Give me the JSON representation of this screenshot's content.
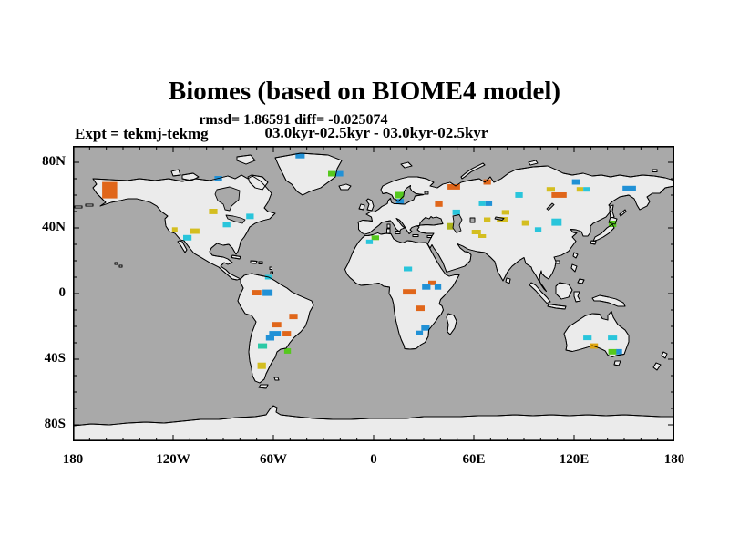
{
  "figure": {
    "title": "Biomes (based on BIOME4 model)",
    "stats_line": "rmsd= 1.86591 diff= -0.025074",
    "period_line": "03.0kyr-02.5kyr - 03.0kyr-02.5kyr",
    "experiment_label": "Expt = tekmj-tekmg"
  },
  "chart_data": {
    "type": "map-scatter",
    "projection": "equirectangular",
    "lon_range": [
      -180,
      180
    ],
    "lat_range": [
      -90,
      90
    ],
    "tick_interval_deg": 10,
    "major_tick_lon_deg": 60,
    "major_tick_lat_deg": 40,
    "ocean_color": "#A9A9A9",
    "land_color": "#EBEBEB",
    "coast_color": "#000000",
    "x_tick_labels": [
      {
        "lon": -180,
        "label": "180"
      },
      {
        "lon": -120,
        "label": "120W"
      },
      {
        "lon": -60,
        "label": "60W"
      },
      {
        "lon": 0,
        "label": "0"
      },
      {
        "lon": 60,
        "label": "60E"
      },
      {
        "lon": 120,
        "label": "120E"
      },
      {
        "lon": 180,
        "label": "180"
      }
    ],
    "y_tick_labels": [
      {
        "lat": 80,
        "label": "80N"
      },
      {
        "lat": 40,
        "label": "40N"
      },
      {
        "lat": 0,
        "label": "0"
      },
      {
        "lat": -40,
        "label": "40S"
      },
      {
        "lat": -80,
        "label": "80S"
      }
    ],
    "palette": {
      "orange": "#E0661A",
      "cyan": "#29C5DB",
      "blue": "#2191D6",
      "yellow": "#D4BE20",
      "green": "#56C81E",
      "olive": "#ADB31C",
      "teal": "#2BC9A6",
      "amber": "#DFA50F"
    },
    "marker_default_size_deg": {
      "w": 4.5,
      "h": 3.3
    },
    "markers": [
      {
        "lon": -158,
        "lat": 63,
        "c": "orange",
        "w": 9,
        "h": 10
      },
      {
        "lon": -93,
        "lat": 70,
        "c": "blue"
      },
      {
        "lon": -44,
        "lat": 84,
        "c": "blue",
        "w": 5.5
      },
      {
        "lon": -25,
        "lat": 73,
        "c": "green"
      },
      {
        "lon": -20.5,
        "lat": 73,
        "c": "blue"
      },
      {
        "lon": -96,
        "lat": 50,
        "c": "yellow",
        "w": 5
      },
      {
        "lon": -74,
        "lat": 47,
        "c": "cyan"
      },
      {
        "lon": -88,
        "lat": 42,
        "c": "cyan"
      },
      {
        "lon": -119,
        "lat": 39,
        "c": "yellow",
        "w": 3.3,
        "h": 2.8
      },
      {
        "lon": -107,
        "lat": 38,
        "c": "yellow",
        "w": 5.5
      },
      {
        "lon": -111.5,
        "lat": 34,
        "c": "cyan",
        "w": 5
      },
      {
        "lon": -63,
        "lat": 10,
        "c": "cyan",
        "w": 4,
        "h": 2.8
      },
      {
        "lon": -70,
        "lat": 0.5,
        "c": "orange",
        "w": 5.5
      },
      {
        "lon": -63.5,
        "lat": 0.5,
        "c": "blue",
        "w": 6,
        "h": 3.9
      },
      {
        "lon": -48,
        "lat": -14,
        "c": "orange",
        "w": 5
      },
      {
        "lon": -58,
        "lat": -19,
        "c": "orange",
        "w": 5.5
      },
      {
        "lon": -59,
        "lat": -24.5,
        "c": "blue",
        "w": 7
      },
      {
        "lon": -52,
        "lat": -24.5,
        "c": "orange",
        "w": 5
      },
      {
        "lon": -62,
        "lat": -27,
        "c": "blue",
        "w": 5
      },
      {
        "lon": -66.5,
        "lat": -32,
        "c": "teal",
        "w": 5.5
      },
      {
        "lon": -51.5,
        "lat": -35,
        "c": "green",
        "w": 4
      },
      {
        "lon": -67,
        "lat": -44,
        "c": "yellow",
        "w": 5,
        "h": 3.9
      },
      {
        "lon": 15.5,
        "lat": 60,
        "c": "green",
        "w": 5,
        "h": 3.9
      },
      {
        "lon": 15.8,
        "lat": 56,
        "c": "blue"
      },
      {
        "lon": 48,
        "lat": 65,
        "c": "orange",
        "w": 7.5
      },
      {
        "lon": 68,
        "lat": 68,
        "c": "orange"
      },
      {
        "lon": 39,
        "lat": 54.5,
        "c": "orange"
      },
      {
        "lon": 49.5,
        "lat": 49.5,
        "c": "cyan"
      },
      {
        "lon": 65,
        "lat": 55,
        "c": "cyan",
        "w": 4
      },
      {
        "lon": 69,
        "lat": 55,
        "c": "blue",
        "w": 4
      },
      {
        "lon": 87,
        "lat": 60,
        "c": "cyan"
      },
      {
        "lon": 79,
        "lat": 49.5,
        "c": "yellow",
        "w": 4.5,
        "h": 2.8
      },
      {
        "lon": 68,
        "lat": 45,
        "c": "yellow",
        "w": 4,
        "h": 2.8
      },
      {
        "lon": 77,
        "lat": 45,
        "c": "yellow",
        "w": 6.5
      },
      {
        "lon": 46,
        "lat": 41,
        "c": "olive",
        "w": 4.5,
        "h": 3.9
      },
      {
        "lon": 61.5,
        "lat": 37.5,
        "c": "yellow",
        "w": 5.5,
        "h": 2.8
      },
      {
        "lon": 91,
        "lat": 43,
        "c": "yellow"
      },
      {
        "lon": 65,
        "lat": 35,
        "c": "yellow",
        "w": 4.5,
        "h": 2.2
      },
      {
        "lon": 1,
        "lat": 34,
        "c": "green",
        "w": 4.5,
        "h": 2.8
      },
      {
        "lon": -2.5,
        "lat": 31.5,
        "c": "cyan",
        "w": 4,
        "h": 2.8
      },
      {
        "lon": 20.5,
        "lat": 15,
        "c": "cyan",
        "w": 5,
        "h": 2.8
      },
      {
        "lon": 21.5,
        "lat": 1,
        "c": "orange",
        "w": 8
      },
      {
        "lon": 35,
        "lat": 6.5,
        "c": "orange",
        "w": 4.5,
        "h": 2.8
      },
      {
        "lon": 31.5,
        "lat": 4,
        "c": "blue",
        "w": 5
      },
      {
        "lon": 38.5,
        "lat": 4,
        "c": "blue",
        "w": 4
      },
      {
        "lon": 28,
        "lat": -9,
        "c": "orange",
        "w": 5
      },
      {
        "lon": 31,
        "lat": -21,
        "c": "blue",
        "w": 5
      },
      {
        "lon": 27.5,
        "lat": -24,
        "c": "blue",
        "w": 4,
        "h": 2.8
      },
      {
        "lon": 98.5,
        "lat": 39,
        "c": "cyan",
        "w": 4,
        "h": 2.8
      },
      {
        "lon": 109.5,
        "lat": 43.5,
        "c": "cyan",
        "w": 6,
        "h": 4.4
      },
      {
        "lon": 121,
        "lat": 68,
        "c": "blue"
      },
      {
        "lon": 106,
        "lat": 63.5,
        "c": "yellow",
        "w": 5,
        "h": 2.8
      },
      {
        "lon": 111,
        "lat": 60,
        "c": "orange",
        "w": 9
      },
      {
        "lon": 123.5,
        "lat": 63.5,
        "c": "yellow",
        "w": 4,
        "h": 2.8
      },
      {
        "lon": 127.5,
        "lat": 63.5,
        "c": "cyan",
        "w": 4,
        "h": 2.8
      },
      {
        "lon": 153,
        "lat": 64,
        "c": "blue",
        "w": 8
      },
      {
        "lon": 143,
        "lat": 42.5,
        "c": "green",
        "w": 4.5,
        "h": 3.9
      },
      {
        "lon": 128,
        "lat": -27,
        "c": "cyan",
        "w": 5,
        "h": 2.8
      },
      {
        "lon": 143,
        "lat": -27,
        "c": "cyan",
        "w": 5.5,
        "h": 2.8
      },
      {
        "lon": 132,
        "lat": -32,
        "c": "amber",
        "w": 4.5
      },
      {
        "lon": 143,
        "lat": -35.5,
        "c": "green",
        "w": 5
      },
      {
        "lon": 147,
        "lat": -35.5,
        "c": "blue",
        "w": 3.5
      }
    ]
  }
}
